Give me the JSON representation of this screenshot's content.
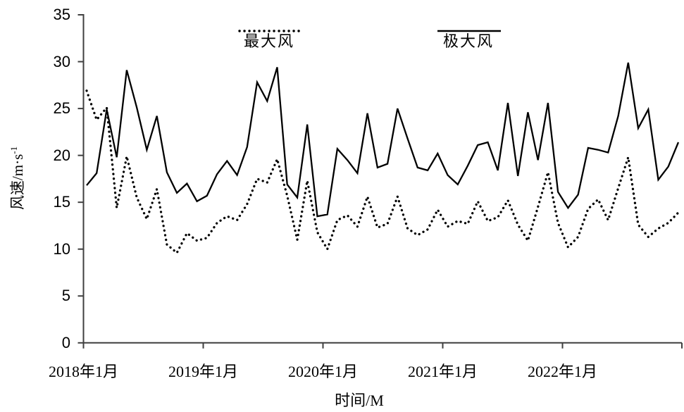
{
  "chart_data": {
    "type": "line",
    "title": "",
    "x_axis": {
      "label": "时间/M",
      "tick_labels": [
        "2018年1月",
        "2019年1月",
        "2020年1月",
        "2021年1月",
        "2022年1月"
      ],
      "months_per_tick": 12,
      "total_months": 60,
      "range_start": "2018年1月",
      "range_end": "2022年12月"
    },
    "y_axis": {
      "label_base": "风速/m·s",
      "label_exponent": "-1",
      "ticks": [
        0,
        5,
        10,
        15,
        20,
        25,
        30,
        35
      ],
      "ylim": [
        0,
        35
      ]
    },
    "grid": "off",
    "legend_position": "top",
    "legend": [
      {
        "label": "最大风",
        "style": "dotted"
      },
      {
        "label": "极大风",
        "style": "solid"
      }
    ],
    "series": [
      {
        "name": "最大风",
        "line_style": "dotted",
        "color": "#000000",
        "values": [
          26.9,
          23.8,
          25.1,
          14.4,
          19.9,
          15.5,
          13.2,
          16.4,
          10.5,
          9.6,
          11.7,
          10.9,
          11.2,
          12.8,
          13.5,
          13.1,
          14.8,
          17.5,
          17.1,
          19.6,
          15.7,
          11.0,
          17.3,
          11.8,
          10.0,
          13.1,
          13.6,
          12.4,
          15.6,
          12.3,
          12.7,
          15.6,
          12.2,
          11.5,
          12.1,
          14.2,
          12.4,
          13.0,
          12.7,
          15.1,
          13.0,
          13.4,
          15.2,
          12.6,
          10.9,
          14.5,
          18.2,
          12.8,
          10.2,
          11.3,
          14.3,
          15.3,
          13.1,
          16.5,
          19.8,
          12.6,
          11.3,
          12.2,
          12.8,
          13.9
        ]
      },
      {
        "name": "极大风",
        "line_style": "solid",
        "color": "#000000",
        "values": [
          16.8,
          18.1,
          24.9,
          19.8,
          29.1,
          25.1,
          20.6,
          24.2,
          18.2,
          16.0,
          17.0,
          15.1,
          15.7,
          18.0,
          19.4,
          17.9,
          20.9,
          27.8,
          25.8,
          29.4,
          16.9,
          15.5,
          23.3,
          13.5,
          13.7,
          20.7,
          19.5,
          18.1,
          24.5,
          18.7,
          19.1,
          25.0,
          21.8,
          18.7,
          18.4,
          20.2,
          17.9,
          16.9,
          18.9,
          21.1,
          21.4,
          18.4,
          25.6,
          17.8,
          24.6,
          19.5,
          25.6,
          16.1,
          14.4,
          15.8,
          20.8,
          20.6,
          20.3,
          24.2,
          29.9,
          22.9,
          24.9,
          17.4,
          18.8,
          21.4
        ]
      }
    ]
  },
  "colors": {
    "background": "#ffffff",
    "axis": "#3f3f3f",
    "text": "#000000",
    "line": "#000000"
  }
}
